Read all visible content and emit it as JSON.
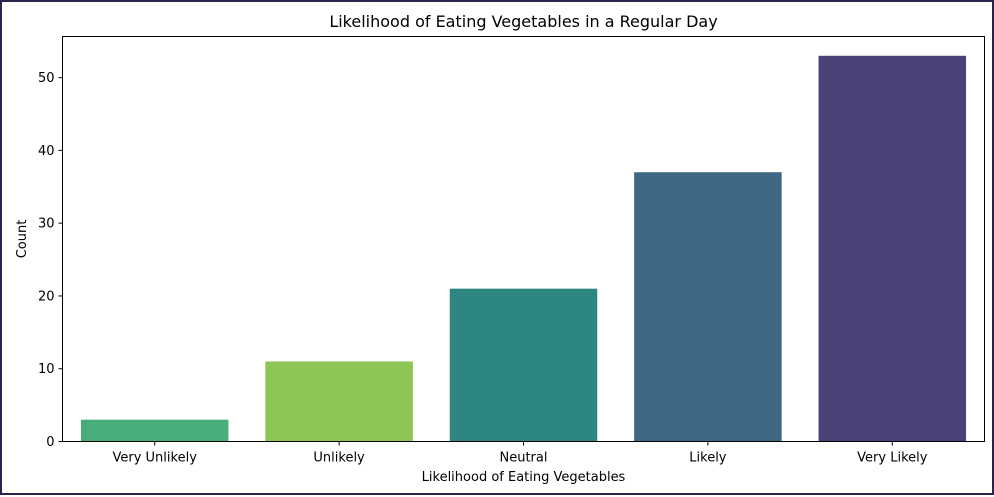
{
  "chart_data": {
    "type": "bar",
    "title": "Likelihood of Eating Vegetables in a Regular Day",
    "xlabel": "Likelihood of Eating Vegetables",
    "ylabel": "Count",
    "categories": [
      "Very Unlikely",
      "Unlikely",
      "Neutral",
      "Likely",
      "Very Likely"
    ],
    "values": [
      3,
      11,
      21,
      37,
      53
    ],
    "colors": [
      "#48ad79",
      "#8dc555",
      "#2e8680",
      "#3e6783",
      "#4b4179"
    ],
    "ylim": [
      0,
      55.65
    ],
    "yticks": [
      0,
      10,
      20,
      30,
      40,
      50
    ],
    "grid": false,
    "legend": "none"
  }
}
